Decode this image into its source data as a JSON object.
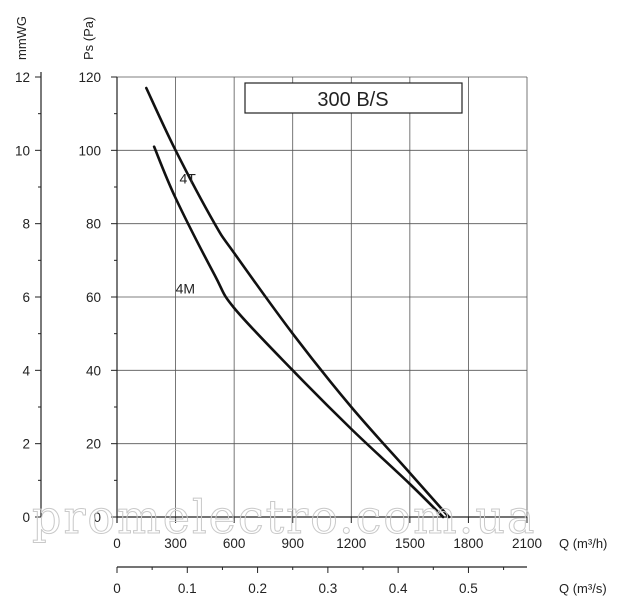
{
  "chart_data": {
    "type": "line",
    "title": "300 B/S",
    "left_axis_title": "mmWG",
    "ylabel": "Ps (Pa)",
    "xlabel": "Q (m³/h)",
    "secondary_xlabel": "Q (m³/s)",
    "xlim": [
      0,
      2100
    ],
    "ylim": [
      0,
      120
    ],
    "mmwg_lim": [
      0,
      12
    ],
    "secondary_xlim": [
      0,
      0.5833
    ],
    "grid": true,
    "x_ticks": [
      "0",
      "300",
      "600",
      "900",
      "1200",
      "1500",
      "1800",
      "2100"
    ],
    "y_ticks": [
      "0",
      "20",
      "40",
      "60",
      "80",
      "100",
      "120"
    ],
    "mmwg_ticks": [
      "0",
      "2",
      "4",
      "6",
      "8",
      "10",
      "12"
    ],
    "secondary_x_ticks": [
      "0",
      "0.1",
      "0.2",
      "0.3",
      "0.4",
      "0.5"
    ],
    "series": [
      {
        "name": "4T",
        "points": [
          [
            150,
            117
          ],
          [
            300,
            100
          ],
          [
            500,
            80
          ],
          [
            600,
            72
          ],
          [
            900,
            50
          ],
          [
            1200,
            30
          ],
          [
            1500,
            12
          ],
          [
            1700,
            0
          ]
        ]
      },
      {
        "name": "4M",
        "points": [
          [
            190,
            101
          ],
          [
            300,
            87
          ],
          [
            500,
            66
          ],
          [
            600,
            57
          ],
          [
            900,
            40
          ],
          [
            1200,
            24
          ],
          [
            1500,
            9
          ],
          [
            1670,
            0
          ]
        ]
      }
    ],
    "watermark": "promelectro.com.ua"
  }
}
